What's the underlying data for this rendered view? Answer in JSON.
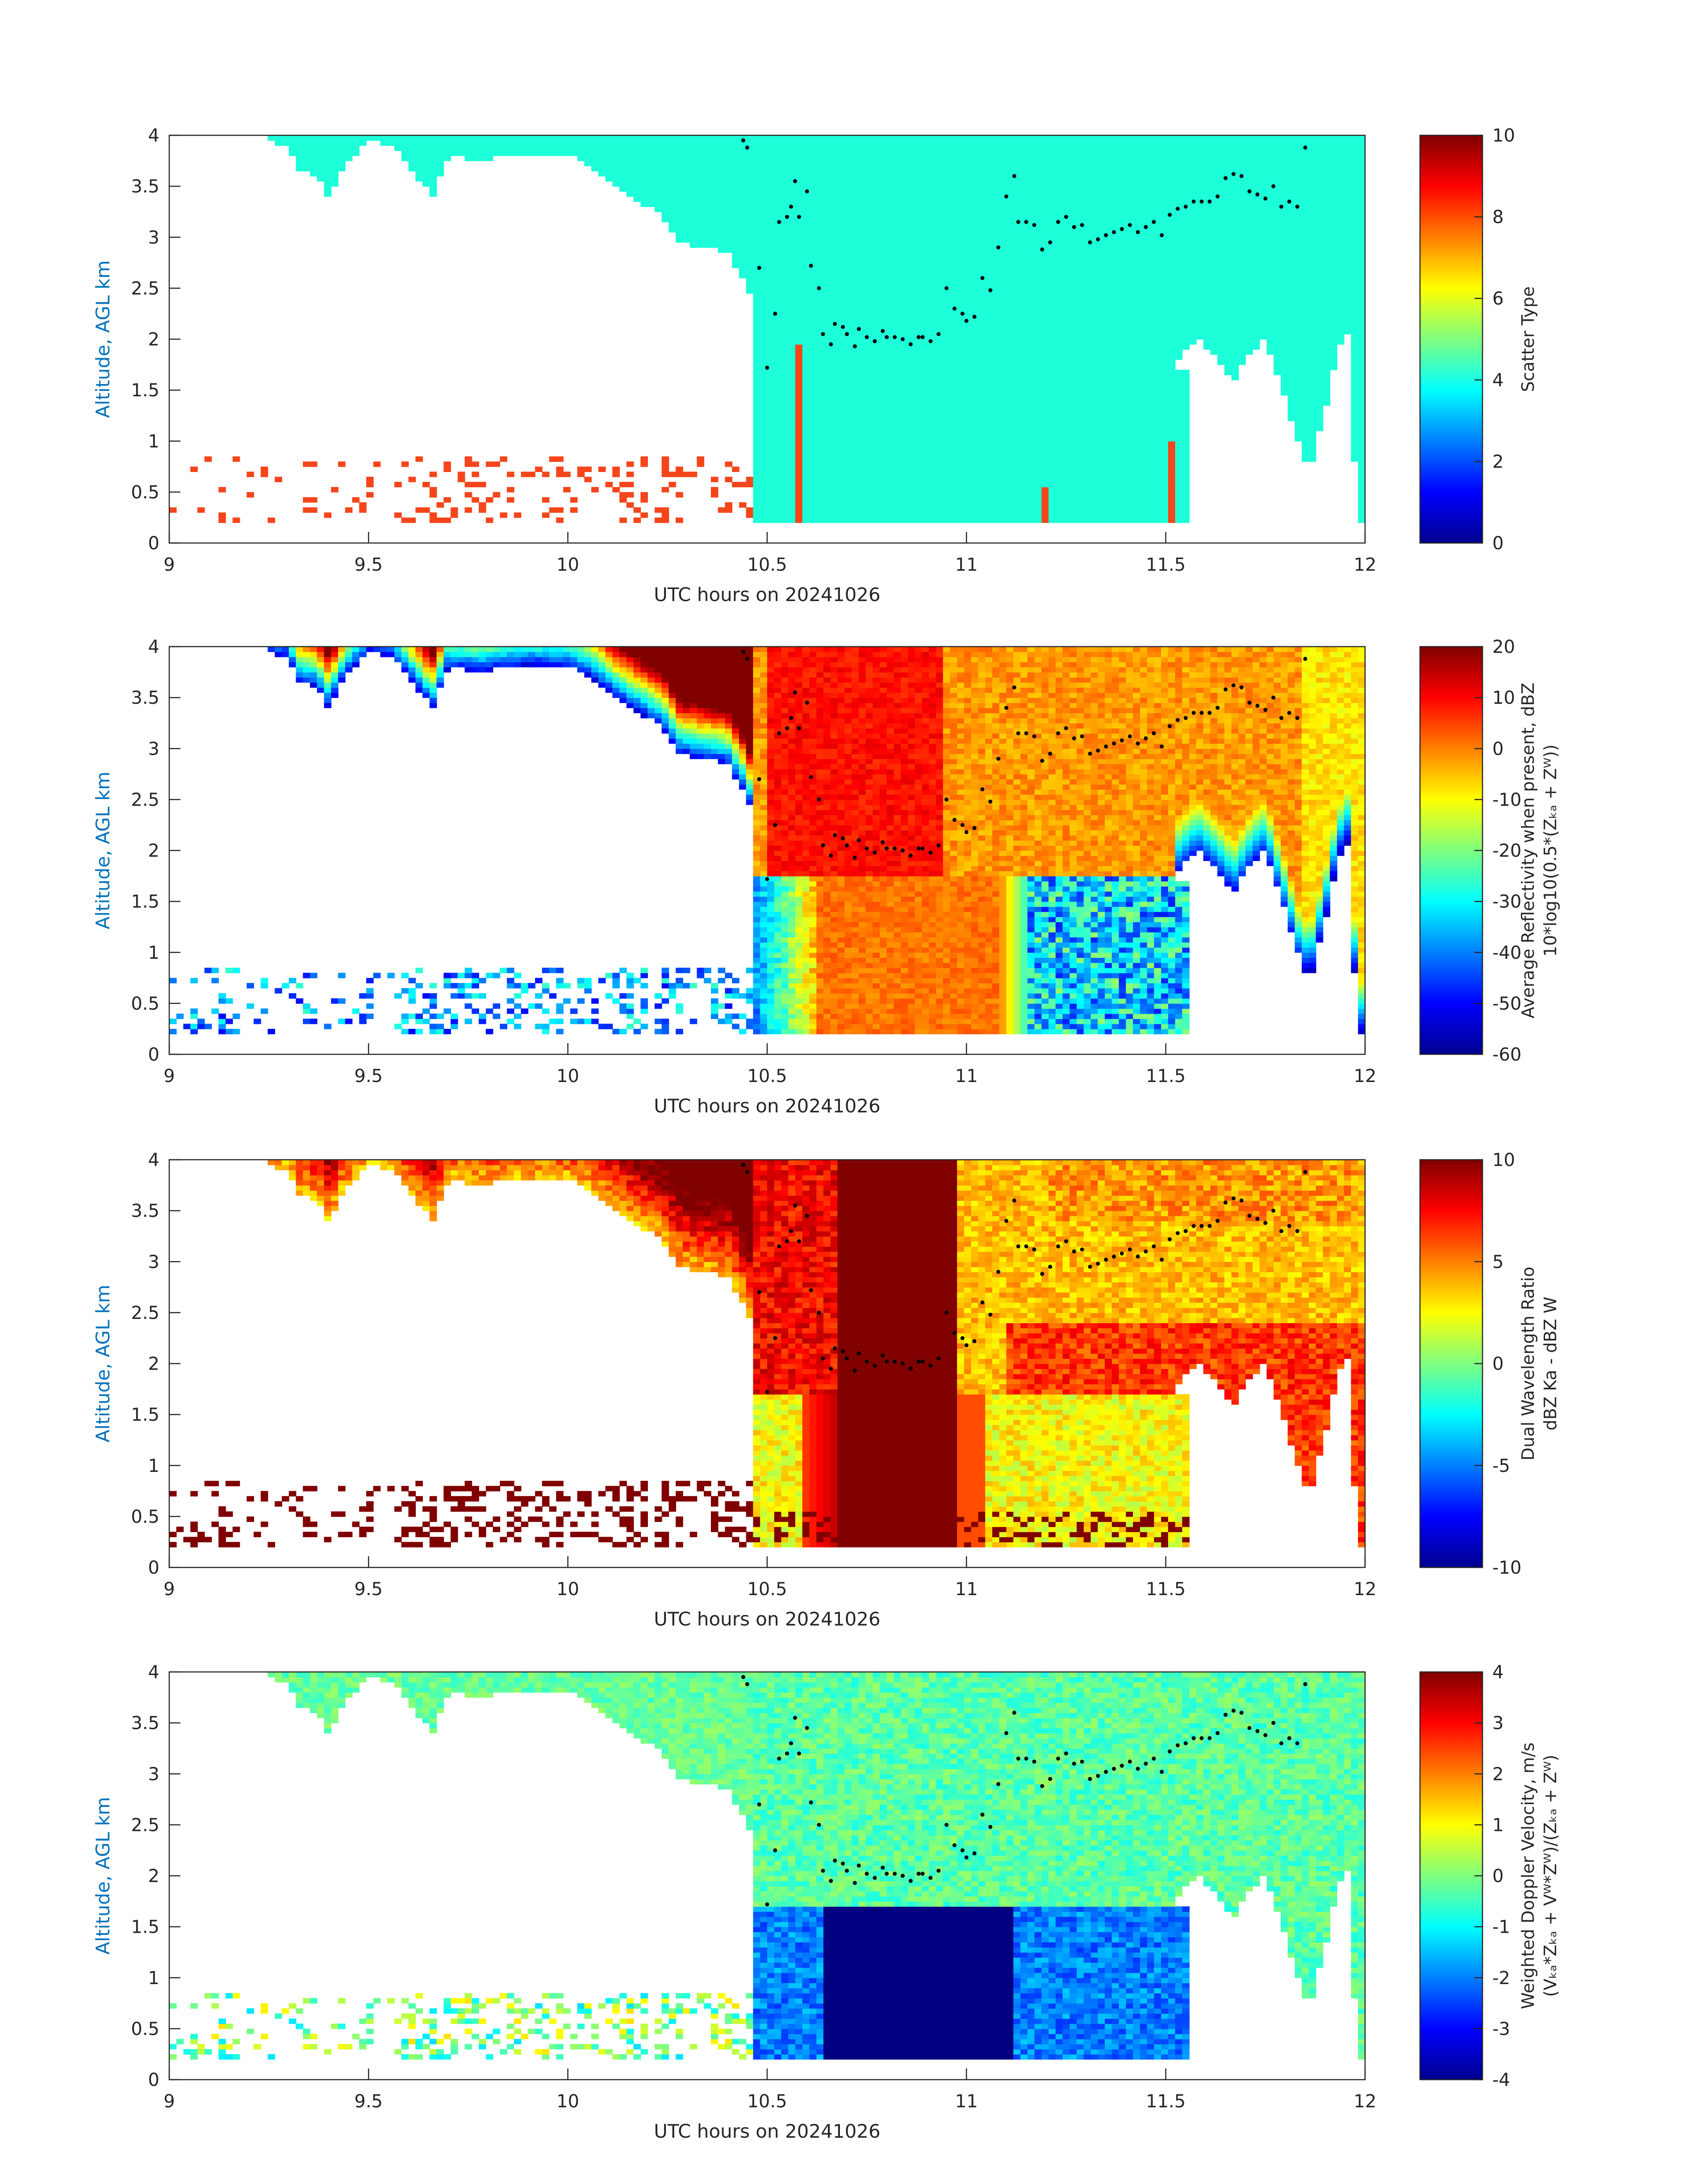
{
  "chart_data": [
    {
      "type": "heatmap",
      "xlabel": "UTC hours on 20241026",
      "ylabel": "Altitude, AGL km",
      "xlim": [
        9,
        12
      ],
      "ylim": [
        0,
        4
      ],
      "xticks": [
        "9",
        "9.5",
        "10",
        "10.5",
        "11",
        "11.5",
        "12"
      ],
      "yticks": [
        "0",
        "0.5",
        "1",
        "1.5",
        "2",
        "2.5",
        "3",
        "3.5",
        "4"
      ],
      "colorbar": {
        "label_lines": [
          "Scatter Type"
        ],
        "clim": [
          0,
          10
        ],
        "ticks": [
          "0",
          "2",
          "4",
          "6",
          "8",
          "10"
        ],
        "colormap": "jet"
      },
      "field": "scatter",
      "colors": {
        "cloud": "#1CFFD9",
        "precip": "#F5451A"
      }
    },
    {
      "type": "heatmap",
      "xlabel": "UTC hours on 20241026",
      "ylabel": "Altitude, AGL km",
      "xlim": [
        9,
        12
      ],
      "ylim": [
        0,
        4
      ],
      "xticks": [
        "9",
        "9.5",
        "10",
        "10.5",
        "11",
        "11.5",
        "12"
      ],
      "yticks": [
        "0",
        "0.5",
        "1",
        "1.5",
        "2",
        "2.5",
        "3",
        "3.5",
        "4"
      ],
      "colorbar": {
        "label_lines": [
          "Average Reflectivity when present, dBZ",
          "10*log10(0.5*(Zₖₐ + Zᵂ))"
        ],
        "clim": [
          -60,
          20
        ],
        "ticks": [
          "-60",
          "-50",
          "-40",
          "-30",
          "-20",
          "-10",
          "0",
          "10",
          "20"
        ],
        "colormap": "jet"
      },
      "field": "reflectivity"
    },
    {
      "type": "heatmap",
      "xlabel": "UTC hours on 20241026",
      "ylabel": "Altitude, AGL km",
      "xlim": [
        9,
        12
      ],
      "ylim": [
        0,
        4
      ],
      "xticks": [
        "9",
        "9.5",
        "10",
        "10.5",
        "11",
        "11.5",
        "12"
      ],
      "yticks": [
        "0",
        "0.5",
        "1",
        "1.5",
        "2",
        "2.5",
        "3",
        "3.5",
        "4"
      ],
      "colorbar": {
        "label_lines": [
          "Dual Wavelength Ratio",
          "dBZ Ka - dBZ W"
        ],
        "clim": [
          -10,
          10
        ],
        "ticks": [
          "-10",
          "-5",
          "0",
          "5",
          "10"
        ],
        "colormap": "jet"
      },
      "field": "dwr"
    },
    {
      "type": "heatmap",
      "xlabel": "UTC hours on 20241026",
      "ylabel": "Altitude, AGL km",
      "xlim": [
        9,
        12
      ],
      "ylim": [
        0,
        4
      ],
      "xticks": [
        "9",
        "9.5",
        "10",
        "10.5",
        "11",
        "11.5",
        "12"
      ],
      "yticks": [
        "0",
        "0.5",
        "1",
        "1.5",
        "2",
        "2.5",
        "3",
        "3.5",
        "4"
      ],
      "colorbar": {
        "label_lines": [
          "Weighted Doppler Velocity, m/s",
          "(Vₖₐ*Zₖₐ + Vᵂ*Zᵂ)/(Zₖₐ + Zᵂ)"
        ],
        "clim": [
          -4,
          4
        ],
        "ticks": [
          "-4",
          "-3",
          "-2",
          "-1",
          "0",
          "1",
          "2",
          "3",
          "4"
        ],
        "colormap": "jet"
      },
      "field": "velocity"
    }
  ],
  "overlay_points": {
    "color": "#000000",
    "x": [
      10.44,
      10.45,
      10.48,
      10.5,
      10.52,
      10.53,
      10.55,
      10.56,
      10.57,
      10.58,
      10.6,
      10.61,
      10.63,
      10.64,
      10.66,
      10.67,
      10.69,
      10.7,
      10.72,
      10.73,
      10.75,
      10.77,
      10.79,
      10.8,
      10.82,
      10.84,
      10.86,
      10.88,
      10.89,
      10.91,
      10.93,
      10.95,
      10.97,
      10.99,
      11.0,
      11.02,
      11.04,
      11.06,
      11.08,
      11.1,
      11.12,
      11.13,
      11.15,
      11.17,
      11.19,
      11.21,
      11.23,
      11.25,
      11.27,
      11.29,
      11.31,
      11.33,
      11.35,
      11.37,
      11.39,
      11.41,
      11.43,
      11.45,
      11.47,
      11.49,
      11.51,
      11.53,
      11.55,
      11.57,
      11.59,
      11.61,
      11.63,
      11.65,
      11.67,
      11.69,
      11.71,
      11.73,
      11.75,
      11.77,
      11.79,
      11.81,
      11.83,
      11.85
    ],
    "y": [
      3.95,
      3.88,
      2.7,
      1.72,
      2.25,
      3.15,
      3.2,
      3.3,
      3.55,
      3.2,
      3.45,
      2.72,
      2.5,
      2.05,
      1.95,
      2.15,
      2.12,
      2.05,
      1.93,
      2.1,
      2.02,
      1.98,
      2.08,
      2.02,
      2.02,
      2.0,
      1.95,
      2.02,
      2.02,
      1.98,
      2.05,
      2.5,
      2.3,
      2.25,
      2.18,
      2.22,
      2.6,
      2.48,
      2.9,
      3.4,
      3.6,
      3.15,
      3.15,
      3.12,
      2.88,
      2.95,
      3.15,
      3.2,
      3.1,
      3.12,
      2.95,
      2.98,
      3.02,
      3.05,
      3.08,
      3.12,
      3.05,
      3.1,
      3.15,
      3.02,
      3.22,
      3.28,
      3.3,
      3.35,
      3.35,
      3.35,
      3.4,
      3.58,
      3.62,
      3.6,
      3.45,
      3.42,
      3.38,
      3.5,
      3.3,
      3.35,
      3.3,
      3.88
    ]
  }
}
